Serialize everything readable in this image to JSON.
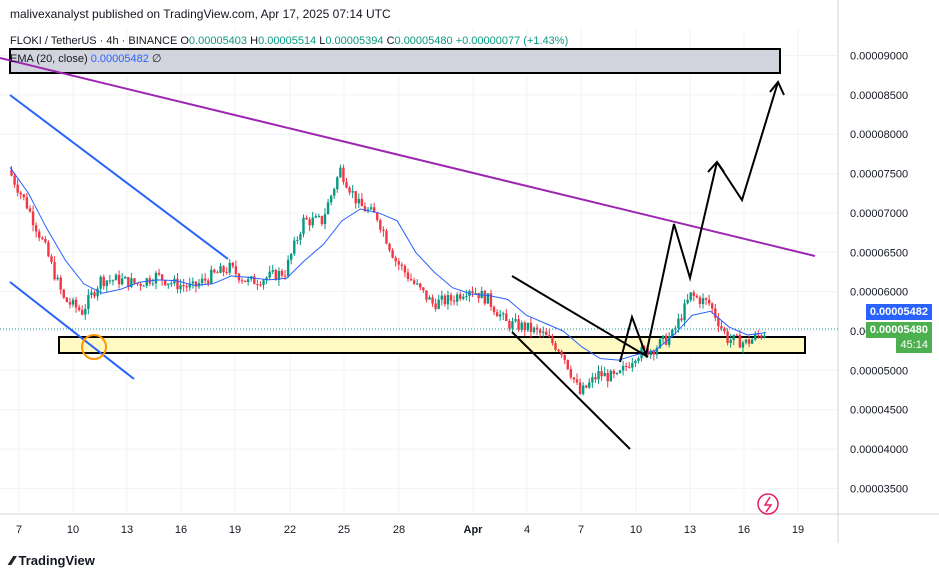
{
  "header": {
    "published": "malivexanalyst published on TradingView.com, Apr 17, 2025 07:14 UTC"
  },
  "symbol": {
    "name": "FLOKI / TetherUS · 4h · BINANCE",
    "o_label": "O",
    "o": "0.00005403",
    "h_label": "H",
    "h": "0.00005514",
    "l_label": "L",
    "l": "0.00005394",
    "c_label": "C",
    "c": "0.00005480",
    "change": "+0.00000077 (+1.43%)"
  },
  "ema": {
    "label": "EMA (20, close)",
    "value": "0.00005482",
    "suffix": "∅"
  },
  "price_tags": {
    "ema": "0.00005482",
    "last": "0.00005480",
    "countdown": "45:14"
  },
  "footer": {
    "brand": "TradingView"
  },
  "colors": {
    "up": "#089981",
    "down": "#f23645",
    "ema": "#2962ff",
    "resistance": "#9c27b0",
    "channel": "#2962ff",
    "zone_yellow": "#fff9c4",
    "zone_grey": "#d1d4dc",
    "last_tag": "#4caf50"
  },
  "chart_data": {
    "type": "line",
    "title": "FLOKI / TetherUS · 4h · BINANCE",
    "x_ticks": [
      "7",
      "10",
      "13",
      "16",
      "19",
      "22",
      "25",
      "28",
      "Apr",
      "4",
      "7",
      "10",
      "13",
      "16",
      "19"
    ],
    "y_ticks": [
      "0.00009000",
      "0.00008500",
      "0.00008000",
      "0.00007500",
      "0.00007000",
      "0.00006500",
      "0.00006000",
      "0.00005500",
      "0.00005000",
      "0.00004500",
      "0.00004000",
      "0.00003500"
    ],
    "ylim": [
      3.2e-05,
      9.35e-05
    ],
    "series": [
      {
        "name": "EMA (20, close)",
        "x": [
          "Mar 7",
          "Mar 8",
          "Mar 9",
          "Mar 10",
          "Mar 11",
          "Mar 12",
          "Mar 13",
          "Mar 14",
          "Mar 15",
          "Mar 16",
          "Mar 17",
          "Mar 18",
          "Mar 19",
          "Mar 20",
          "Mar 21",
          "Mar 22",
          "Mar 23",
          "Mar 24",
          "Mar 25",
          "Mar 26",
          "Mar 27",
          "Mar 28",
          "Mar 29",
          "Mar 30",
          "Mar 31",
          "Apr 1",
          "Apr 2",
          "Apr 3",
          "Apr 4",
          "Apr 5",
          "Apr 6",
          "Apr 7",
          "Apr 8",
          "Apr 9",
          "Apr 10",
          "Apr 11",
          "Apr 12",
          "Apr 13",
          "Apr 14",
          "Apr 15",
          "Apr 16",
          "Apr 17"
        ],
        "values": [
          7.58e-05,
          7.25e-05,
          6.8e-05,
          6.4e-05,
          6.1e-05,
          5.98e-05,
          6.03e-05,
          6.12e-05,
          6.15e-05,
          6.14e-05,
          6.08e-05,
          6.1e-05,
          6.2e-05,
          6.18e-05,
          6.15e-05,
          6.17e-05,
          6.4e-05,
          6.6e-05,
          6.9e-05,
          7.05e-05,
          7e-05,
          6.9e-05,
          6.5e-05,
          6.25e-05,
          6.05e-05,
          5.97e-05,
          5.95e-05,
          5.9e-05,
          5.7e-05,
          5.6e-05,
          5.5e-05,
          5.3e-05,
          5.15e-05,
          5.13e-05,
          5.2e-05,
          5.25e-05,
          5.45e-05,
          5.7e-05,
          5.75e-05,
          5.55e-05,
          5.45e-05,
          5.48e-05
        ]
      },
      {
        "name": "FLOKI / TetherUS",
        "x": [
          "Mar 7",
          "Mar 8",
          "Mar 9",
          "Mar 10",
          "Mar 11",
          "Mar 12",
          "Mar 13",
          "Mar 14",
          "Mar 15",
          "Mar 16",
          "Mar 17",
          "Mar 18",
          "Mar 19",
          "Mar 20",
          "Mar 21",
          "Mar 22",
          "Mar 23",
          "Mar 24",
          "Mar 25",
          "Mar 26",
          "Mar 27",
          "Mar 28",
          "Mar 29",
          "Mar 30",
          "Mar 31",
          "Apr 1",
          "Apr 2",
          "Apr 3",
          "Apr 4",
          "Apr 5",
          "Apr 6",
          "Apr 7",
          "Apr 8",
          "Apr 9",
          "Apr 10",
          "Apr 11",
          "Apr 12",
          "Apr 13",
          "Apr 14",
          "Apr 15",
          "Apr 16",
          "Apr 17"
        ],
        "values": [
          7.55e-05,
          7.1e-05,
          6.55e-05,
          5.9e-05,
          5.75e-05,
          6.15e-05,
          6.15e-05,
          6.1e-05,
          6.2e-05,
          6.1e-05,
          6.05e-05,
          6.2e-05,
          6.3e-05,
          6.12e-05,
          6.18e-05,
          6.25e-05,
          6.9e-05,
          6.9e-05,
          7.55e-05,
          7.1e-05,
          6.95e-05,
          6.4e-05,
          6.1e-05,
          5.85e-05,
          5.9e-05,
          6.05e-05,
          5.9e-05,
          5.6e-05,
          5.55e-05,
          5.45e-05,
          5.25e-05,
          4.7e-05,
          4.95e-05,
          4.9e-05,
          5.2e-05,
          5.28e-05,
          5.45e-05,
          5.95e-05,
          5.85e-05,
          5.4e-05,
          5.35e-05,
          5.48e-05
        ]
      }
    ],
    "grid": true,
    "legend": "top-left"
  }
}
